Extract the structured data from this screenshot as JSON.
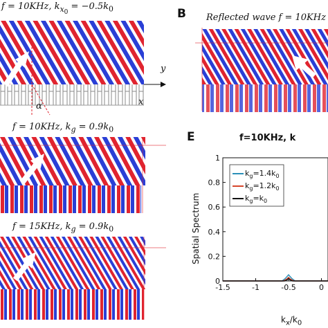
{
  "panel_top_left": {
    "caption_prefix": "f = 10KHz, k",
    "caption_sub": "x",
    "caption_sub2": "0",
    "caption_suffix": " = −0.5k",
    "caption_end": "0",
    "axis_y": "y",
    "axis_x": "x",
    "angle": "α"
  },
  "panel_b": {
    "letter": "B",
    "caption": "Reflected wave f = 10KHz"
  },
  "panel_mid_left": {
    "caption_prefix": "f = 10KHz, k",
    "caption_sub": "g",
    "caption_suffix": " = 0.9k",
    "caption_end": "0"
  },
  "panel_bottom_left": {
    "caption_prefix": "f = 15KHz, k",
    "caption_sub": "g",
    "caption_suffix": " = 0.9k",
    "caption_end": "0"
  },
  "panel_e": {
    "letter": "E",
    "title": "f=10KHz, k",
    "chart_data": {
      "type": "line",
      "ylabel": "Spatial Spectrum",
      "xlabel": "k",
      "xlabel_sub": "x",
      "xlabel_mid": "/k",
      "xlabel_sub2": "0",
      "xlim": [
        -1.5,
        0.1
      ],
      "ylim": [
        0,
        1
      ],
      "xticks": [
        "-1.5",
        "-1",
        "-0.5",
        "0"
      ],
      "yticks": [
        "0",
        "0.2",
        "0.4",
        "0.6",
        "0.8",
        "1"
      ],
      "legend": [
        {
          "name": "k",
          "sub": "g",
          "value": "=1.4k",
          "sub2": "0",
          "color": "#2a8fb8"
        },
        {
          "name": "k",
          "sub": "g",
          "value": "=1.2k",
          "sub2": "0",
          "color": "#d6452a"
        },
        {
          "name": "k",
          "sub": "g",
          "value": "=k",
          "sub2": "0",
          "color": "#111111"
        }
      ],
      "series": [
        {
          "color": "#2a8fb8",
          "x": [
            -1.5,
            -0.6,
            -0.55,
            -0.5,
            -0.45,
            -0.4,
            0.1
          ],
          "y": [
            0,
            0,
            0.02,
            0.05,
            0.02,
            0,
            0
          ]
        },
        {
          "color": "#d6452a",
          "x": [
            -1.5,
            -0.58,
            -0.53,
            -0.5,
            -0.47,
            -0.42,
            0.1
          ],
          "y": [
            0,
            0,
            0.015,
            0.03,
            0.015,
            0,
            0
          ]
        },
        {
          "color": "#111111",
          "x": [
            -1.5,
            -0.56,
            -0.52,
            -0.5,
            -0.48,
            -0.44,
            0.1
          ],
          "y": [
            0,
            0,
            0.01,
            0.02,
            0.01,
            0,
            0
          ]
        }
      ]
    }
  }
}
